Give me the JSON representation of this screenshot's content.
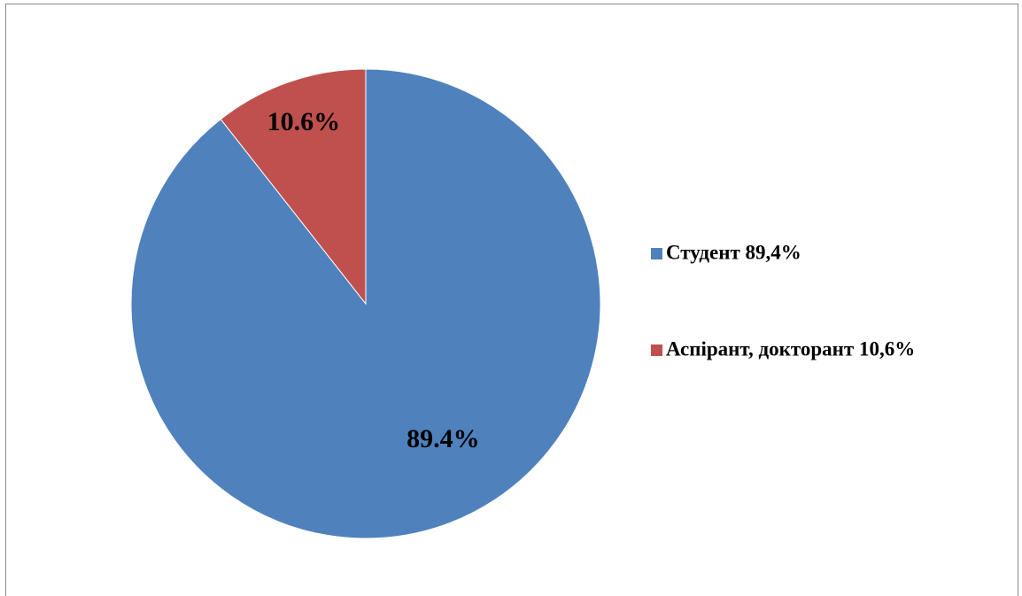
{
  "chart_data": {
    "type": "pie",
    "categories": [
      "Студент 89,4%",
      "Аспірант, докторант 10,6%"
    ],
    "values": [
      89.4,
      10.6
    ],
    "value_labels": [
      "89.4%",
      "10.6%"
    ],
    "colors": [
      "#4f81bd",
      "#c0504d"
    ]
  }
}
